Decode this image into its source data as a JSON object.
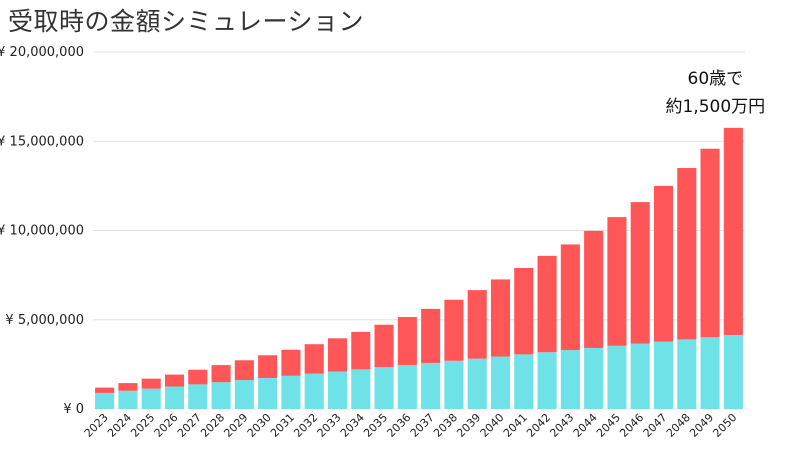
{
  "title": "受取時の金額シミュレーション",
  "chart_data": {
    "type": "bar",
    "stacked": true,
    "title": "受取時の金額シミュレーション",
    "ylim": [
      0,
      20000000
    ],
    "yticks": [
      0,
      5000000,
      10000000,
      15000000,
      20000000
    ],
    "ytick_labels": [
      "¥ 0",
      "¥ 5,000,000",
      "¥ 10,000,000",
      "¥ 15,000,000",
      "¥ 20,000,000"
    ],
    "grid": true,
    "categories": [
      "2023",
      "2024",
      "2025",
      "2026",
      "2027",
      "2028",
      "2029",
      "2030",
      "2031",
      "2032",
      "2033",
      "2034",
      "2035",
      "2036",
      "2037",
      "2038",
      "2039",
      "2040",
      "2041",
      "2042",
      "2043",
      "2044",
      "2045",
      "2046",
      "2047",
      "2048",
      "2049",
      "2050"
    ],
    "series": [
      {
        "color": "#6ee2e6",
        "values": [
          900000,
          1020000,
          1140000,
          1260000,
          1380000,
          1500000,
          1620000,
          1740000,
          1860000,
          1980000,
          2100000,
          2220000,
          2340000,
          2460000,
          2580000,
          2700000,
          2820000,
          2940000,
          3060000,
          3180000,
          3300000,
          3420000,
          3540000,
          3660000,
          3780000,
          3900000,
          4020000,
          4140000
        ]
      },
      {
        "color": "#ff5757",
        "values": [
          300000,
          430000,
          560000,
          670000,
          820000,
          960000,
          1110000,
          1270000,
          1460000,
          1650000,
          1860000,
          2100000,
          2380000,
          2690000,
          3030000,
          3420000,
          3840000,
          4320000,
          4840000,
          5400000,
          5920000,
          6560000,
          7210000,
          7930000,
          8720000,
          9600000,
          10560000,
          11610000
        ]
      }
    ],
    "annotation": {
      "lines": [
        "60歳で",
        "約1,500万円"
      ],
      "category": "2050"
    }
  }
}
